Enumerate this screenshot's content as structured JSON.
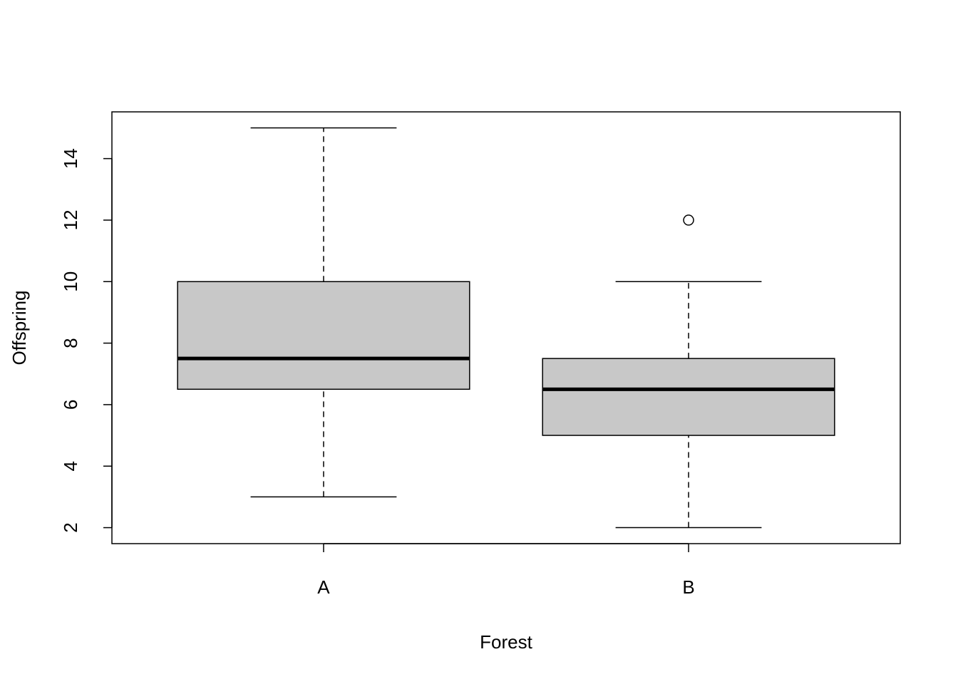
{
  "chart_data": {
    "type": "boxplot",
    "title": "",
    "xlabel": "Forest",
    "ylabel": "Offspring",
    "categories": [
      "A",
      "B"
    ],
    "boxes": [
      {
        "name": "A",
        "whisker_low": 3,
        "q1": 6.5,
        "median": 7.5,
        "q3": 10,
        "whisker_high": 15,
        "outliers": []
      },
      {
        "name": "B",
        "whisker_low": 2,
        "q1": 5,
        "median": 6.5,
        "q3": 7.5,
        "whisker_high": 10,
        "outliers": [
          12
        ]
      }
    ],
    "yticks": [
      2,
      4,
      6,
      8,
      10,
      12,
      14
    ],
    "ylim": [
      1.48,
      15.52
    ],
    "grid": false,
    "box_fill": "#c8c8c8"
  }
}
